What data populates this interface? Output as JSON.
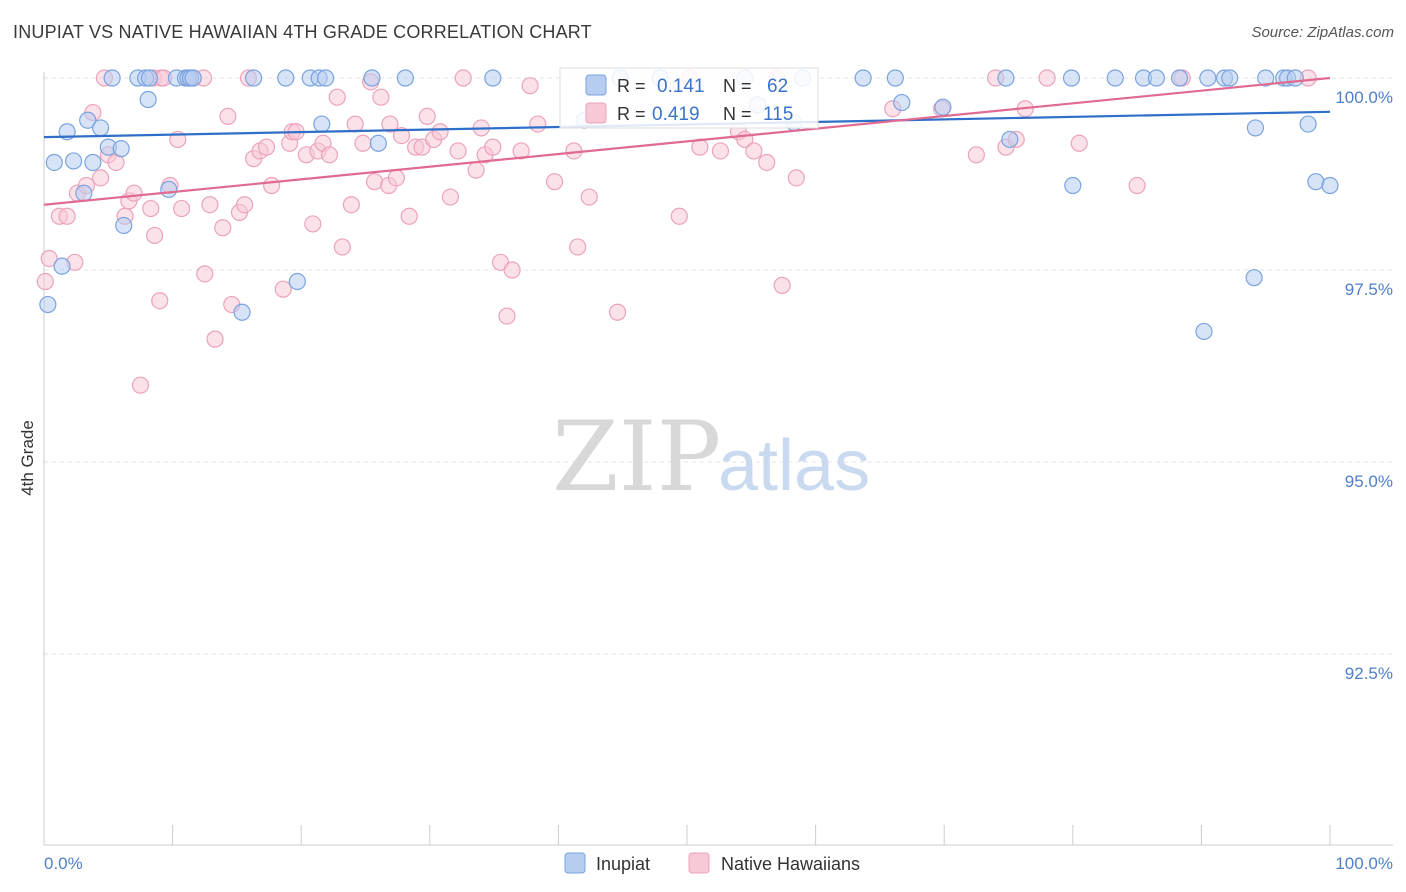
{
  "title": "INUPIAT VS NATIVE HAWAIIAN 4TH GRADE CORRELATION CHART",
  "source": "Source: ZipAtlas.com",
  "watermark": {
    "zip": "ZIP",
    "atlas": "atlas"
  },
  "chart_data": {
    "type": "scatter",
    "ylabel": "4th Grade",
    "xlim": [
      0,
      100
    ],
    "ylim": [
      90.0,
      100.3
    ],
    "x_tick_labels": [
      {
        "value": 0,
        "label": "0.0%"
      },
      {
        "value": 100,
        "label": "100.0%"
      }
    ],
    "y_ticks": [
      {
        "value": 100.0,
        "label": "100.0%"
      },
      {
        "value": 97.5,
        "label": "97.5%"
      },
      {
        "value": 95.0,
        "label": "95.0%"
      },
      {
        "value": 92.5,
        "label": "92.5%"
      }
    ],
    "grid": "horizontal dashed",
    "legend_position": "bottom-center",
    "stats_box": [
      {
        "series": "Inupiat",
        "r_label": "R =",
        "r": "0.141",
        "n_label": "N =",
        "n": "62"
      },
      {
        "series": "Native Hawaiians",
        "r_label": "R =",
        "r": "0.419",
        "n_label": "N =",
        "n": "115"
      }
    ],
    "series": [
      {
        "name": "Inupiat",
        "color": "#7aa3e0",
        "fill": "#b7cdf0",
        "line_color": "#2f6fc9",
        "trend": {
          "x": [
            0,
            100
          ],
          "y": [
            99.23,
            99.56
          ]
        },
        "points": [
          [
            0.3,
            97.05
          ],
          [
            0.8,
            98.9
          ],
          [
            1.4,
            97.55
          ],
          [
            1.8,
            99.3
          ],
          [
            2.3,
            98.92
          ],
          [
            3.1,
            98.5
          ],
          [
            3.4,
            99.45
          ],
          [
            3.8,
            98.9
          ],
          [
            4.4,
            99.35
          ],
          [
            5.0,
            99.1
          ],
          [
            5.3,
            100.0
          ],
          [
            6.0,
            99.08
          ],
          [
            6.2,
            98.08
          ],
          [
            7.3,
            100.0
          ],
          [
            7.9,
            100.0
          ],
          [
            8.1,
            99.72
          ],
          [
            8.2,
            100.0
          ],
          [
            9.7,
            98.55
          ],
          [
            10.3,
            100.0
          ],
          [
            11.0,
            100.0
          ],
          [
            11.2,
            100.0
          ],
          [
            11.4,
            100.0
          ],
          [
            11.6,
            100.0
          ],
          [
            15.4,
            96.95
          ],
          [
            16.3,
            100.0
          ],
          [
            18.8,
            100.0
          ],
          [
            19.7,
            97.35
          ],
          [
            20.7,
            100.0
          ],
          [
            21.4,
            100.0
          ],
          [
            21.6,
            99.4
          ],
          [
            21.9,
            100.0
          ],
          [
            25.5,
            100.0
          ],
          [
            26.0,
            99.15
          ],
          [
            28.1,
            100.0
          ],
          [
            34.9,
            100.0
          ],
          [
            42.0,
            99.45
          ],
          [
            44.8,
            100.0
          ],
          [
            47.9,
            100.0
          ],
          [
            54.5,
            100.0
          ],
          [
            55.5,
            99.65
          ],
          [
            58.3,
            99.42
          ],
          [
            59.0,
            100.0
          ],
          [
            63.7,
            100.0
          ],
          [
            66.2,
            100.0
          ],
          [
            66.7,
            99.68
          ],
          [
            69.9,
            99.62
          ],
          [
            74.8,
            100.0
          ],
          [
            75.1,
            99.2
          ],
          [
            79.9,
            100.0
          ],
          [
            80.0,
            98.6
          ],
          [
            83.3,
            100.0
          ],
          [
            85.5,
            100.0
          ],
          [
            86.5,
            100.0
          ],
          [
            88.3,
            100.0
          ],
          [
            90.2,
            96.7
          ],
          [
            90.5,
            100.0
          ],
          [
            91.8,
            100.0
          ],
          [
            92.2,
            100.0
          ],
          [
            94.1,
            97.4
          ],
          [
            94.2,
            99.35
          ],
          [
            95.0,
            100.0
          ],
          [
            96.4,
            100.0
          ],
          [
            96.7,
            100.0
          ],
          [
            97.3,
            100.0
          ],
          [
            98.3,
            99.4
          ],
          [
            98.9,
            98.65
          ],
          [
            100.0,
            98.6
          ]
        ]
      },
      {
        "name": "Native Hawaiians",
        "color": "#eba3bb",
        "fill": "#f7c8d6",
        "line_color": "#e06a90",
        "trend": {
          "x": [
            0,
            100
          ],
          "y": [
            98.35,
            100.0
          ]
        },
        "points": [
          [
            0.1,
            97.35
          ],
          [
            0.4,
            97.65
          ],
          [
            1.2,
            98.2
          ],
          [
            1.8,
            98.2
          ],
          [
            2.4,
            97.6
          ],
          [
            2.6,
            98.5
          ],
          [
            3.3,
            98.6
          ],
          [
            3.8,
            99.55
          ],
          [
            4.4,
            98.7
          ],
          [
            4.7,
            100.0
          ],
          [
            5.0,
            99.0
          ],
          [
            5.6,
            98.9
          ],
          [
            6.3,
            98.2
          ],
          [
            6.6,
            98.4
          ],
          [
            7.0,
            98.5
          ],
          [
            7.5,
            96.0
          ],
          [
            8.3,
            98.3
          ],
          [
            8.5,
            100.0
          ],
          [
            8.6,
            97.95
          ],
          [
            9.0,
            97.1
          ],
          [
            9.1,
            100.0
          ],
          [
            9.3,
            100.0
          ],
          [
            9.8,
            98.6
          ],
          [
            10.4,
            99.2
          ],
          [
            10.7,
            98.3
          ],
          [
            11.3,
            100.0
          ],
          [
            11.6,
            100.0
          ],
          [
            12.4,
            100.0
          ],
          [
            12.5,
            97.45
          ],
          [
            12.9,
            98.35
          ],
          [
            13.3,
            96.6
          ],
          [
            13.9,
            98.05
          ],
          [
            14.3,
            99.5
          ],
          [
            14.6,
            97.05
          ],
          [
            15.2,
            98.25
          ],
          [
            15.6,
            98.35
          ],
          [
            15.9,
            100.0
          ],
          [
            16.3,
            98.95
          ],
          [
            16.8,
            99.05
          ],
          [
            17.3,
            99.1
          ],
          [
            17.7,
            98.6
          ],
          [
            18.6,
            97.25
          ],
          [
            19.1,
            99.15
          ],
          [
            19.3,
            99.3
          ],
          [
            19.6,
            99.3
          ],
          [
            20.4,
            99.0
          ],
          [
            20.9,
            98.1
          ],
          [
            21.3,
            99.05
          ],
          [
            21.7,
            99.15
          ],
          [
            22.2,
            99.0
          ],
          [
            22.8,
            99.75
          ],
          [
            23.2,
            97.8
          ],
          [
            23.9,
            98.35
          ],
          [
            24.2,
            99.4
          ],
          [
            24.8,
            99.15
          ],
          [
            25.4,
            99.95
          ],
          [
            25.7,
            98.65
          ],
          [
            26.2,
            99.75
          ],
          [
            26.8,
            98.6
          ],
          [
            26.9,
            99.4
          ],
          [
            27.4,
            98.7
          ],
          [
            27.8,
            99.25
          ],
          [
            28.4,
            98.2
          ],
          [
            28.9,
            99.1
          ],
          [
            29.4,
            99.1
          ],
          [
            29.8,
            99.5
          ],
          [
            30.3,
            99.2
          ],
          [
            30.8,
            99.3
          ],
          [
            31.6,
            98.45
          ],
          [
            32.2,
            99.05
          ],
          [
            32.6,
            100.0
          ],
          [
            33.6,
            98.8
          ],
          [
            34.0,
            99.35
          ],
          [
            34.3,
            99.0
          ],
          [
            34.9,
            99.1
          ],
          [
            35.5,
            97.6
          ],
          [
            36.0,
            96.9
          ],
          [
            36.4,
            97.5
          ],
          [
            37.1,
            99.05
          ],
          [
            37.8,
            99.9
          ],
          [
            38.4,
            99.4
          ],
          [
            39.7,
            98.65
          ],
          [
            41.2,
            99.05
          ],
          [
            41.5,
            97.8
          ],
          [
            42.4,
            98.45
          ],
          [
            44.6,
            96.95
          ],
          [
            49.4,
            98.2
          ],
          [
            50.2,
            100.0
          ],
          [
            51.0,
            99.1
          ],
          [
            52.6,
            99.05
          ],
          [
            54.0,
            99.3
          ],
          [
            54.5,
            99.2
          ],
          [
            55.2,
            99.05
          ],
          [
            56.2,
            98.9
          ],
          [
            57.0,
            100.0
          ],
          [
            57.4,
            97.3
          ],
          [
            58.5,
            98.7
          ],
          [
            66.0,
            99.6
          ],
          [
            69.8,
            99.6
          ],
          [
            72.5,
            99.0
          ],
          [
            74.0,
            100.0
          ],
          [
            74.8,
            99.1
          ],
          [
            75.6,
            99.2
          ],
          [
            76.3,
            99.6
          ],
          [
            78.0,
            100.0
          ],
          [
            80.5,
            99.15
          ],
          [
            85.0,
            98.6
          ],
          [
            88.5,
            100.0
          ],
          [
            98.3,
            100.0
          ]
        ]
      }
    ]
  }
}
